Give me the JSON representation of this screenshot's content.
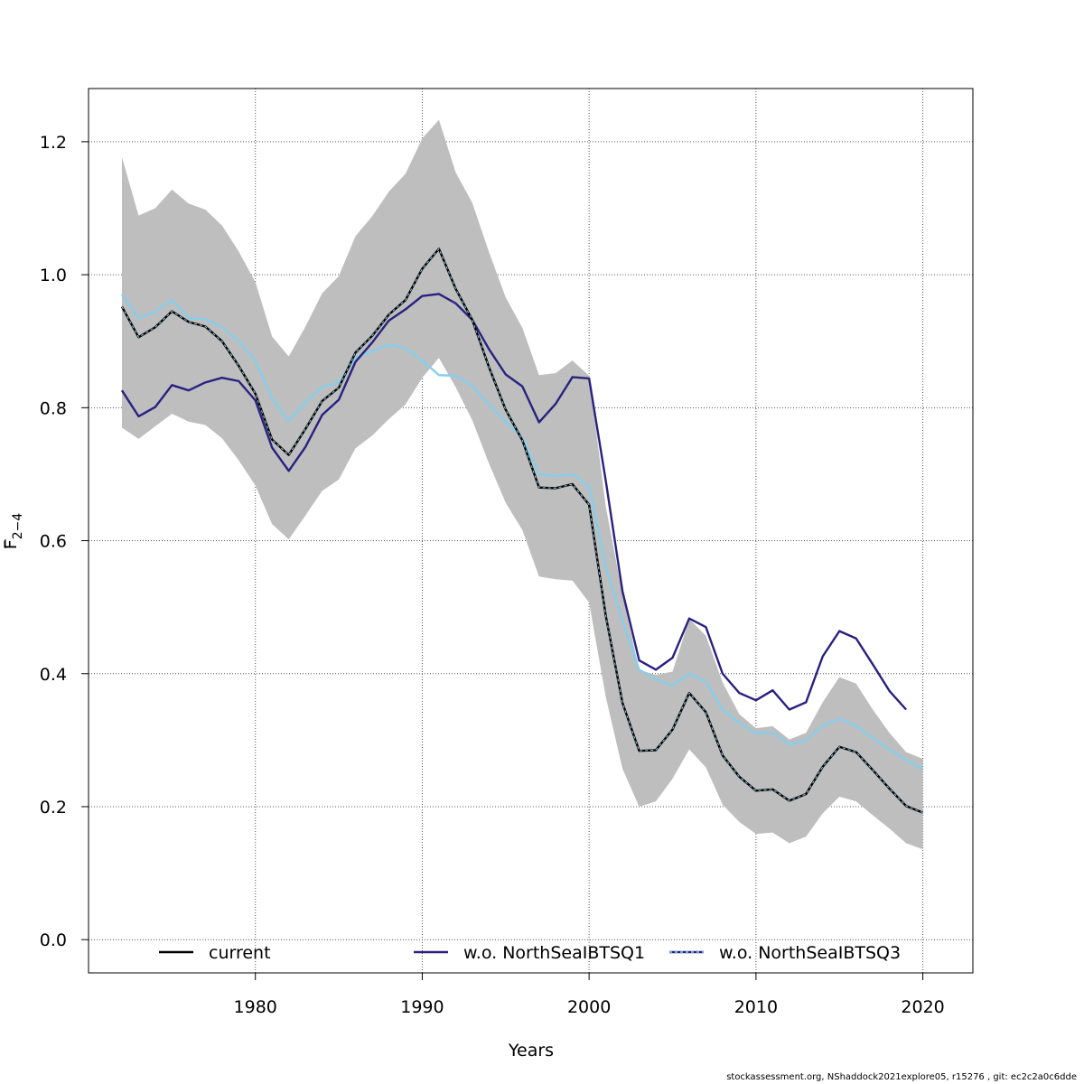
{
  "footer": "stockassessment.org, NShaddock2021explore05, r15276 , git: ec2c2a0c6dde",
  "chart_data": {
    "type": "line",
    "xlabel": "Years",
    "ylabel_main": "F",
    "ylabel_sub": "2−4",
    "xlim": [
      1970,
      2023
    ],
    "ylim": [
      -0.05,
      1.28
    ],
    "xticks": [
      1980,
      1990,
      2000,
      2010,
      2020
    ],
    "yticks": [
      0.0,
      0.2,
      0.4,
      0.6,
      0.8,
      1.0,
      1.2
    ],
    "xtick_labels": [
      "1980",
      "1990",
      "2000",
      "2010",
      "2020"
    ],
    "ytick_labels": [
      "0.0",
      "0.2",
      "0.4",
      "0.6",
      "0.8",
      "1.0",
      "1.2"
    ],
    "grid": true,
    "legend_position": "bottom",
    "x": [
      1972,
      1973,
      1974,
      1975,
      1976,
      1977,
      1978,
      1979,
      1980,
      1981,
      1982,
      1983,
      1984,
      1985,
      1986,
      1987,
      1988,
      1989,
      1990,
      1991,
      1992,
      1993,
      1994,
      1995,
      1996,
      1997,
      1998,
      1999,
      2000,
      2001,
      2002,
      2003,
      2004,
      2005,
      2006,
      2007,
      2008,
      2009,
      2010,
      2011,
      2012,
      2013,
      2014,
      2015,
      2016,
      2017,
      2018,
      2019,
      2020
    ],
    "band": {
      "color": "#bebebe",
      "lower": [
        0.77,
        0.753,
        0.772,
        0.791,
        0.779,
        0.774,
        0.754,
        0.721,
        0.683,
        0.625,
        0.602,
        0.638,
        0.675,
        0.692,
        0.739,
        0.758,
        0.783,
        0.805,
        0.845,
        0.875,
        0.831,
        0.781,
        0.716,
        0.657,
        0.616,
        0.546,
        0.542,
        0.54,
        0.507,
        0.365,
        0.257,
        0.2,
        0.208,
        0.242,
        0.286,
        0.259,
        0.203,
        0.177,
        0.159,
        0.161,
        0.145,
        0.155,
        0.19,
        0.215,
        0.208,
        0.187,
        0.167,
        0.145,
        0.136
      ],
      "upper": [
        1.177,
        1.089,
        1.1,
        1.128,
        1.107,
        1.098,
        1.074,
        1.035,
        0.989,
        0.907,
        0.877,
        0.922,
        0.972,
        0.998,
        1.058,
        1.088,
        1.125,
        1.152,
        1.205,
        1.233,
        1.154,
        1.108,
        1.034,
        0.966,
        0.92,
        0.849,
        0.852,
        0.871,
        0.848,
        0.651,
        0.519,
        0.406,
        0.398,
        0.403,
        0.482,
        0.457,
        0.387,
        0.339,
        0.318,
        0.321,
        0.301,
        0.311,
        0.357,
        0.395,
        0.385,
        0.346,
        0.311,
        0.282,
        0.272
      ]
    },
    "series": [
      {
        "name": "current",
        "color": "#000000",
        "dashed": false,
        "values": [
          0.952,
          0.906,
          0.921,
          0.945,
          0.929,
          0.922,
          0.9,
          0.863,
          0.821,
          0.752,
          0.729,
          0.768,
          0.81,
          0.83,
          0.883,
          0.908,
          0.94,
          0.962,
          1.009,
          1.039,
          0.979,
          0.932,
          0.861,
          0.797,
          0.751,
          0.68,
          0.679,
          0.685,
          0.654,
          0.487,
          0.356,
          0.284,
          0.285,
          0.316,
          0.371,
          0.342,
          0.277,
          0.245,
          0.224,
          0.226,
          0.209,
          0.219,
          0.26,
          0.29,
          0.282,
          0.255,
          0.227,
          0.201,
          0.191
        ]
      },
      {
        "name": "w.o. NorthSeaIBTSQ1",
        "color": "#2a2080",
        "dashed": false,
        "values": [
          0.826,
          0.787,
          0.801,
          0.834,
          0.826,
          0.838,
          0.845,
          0.84,
          0.811,
          0.74,
          0.705,
          0.741,
          0.789,
          0.812,
          0.869,
          0.898,
          0.931,
          0.948,
          0.968,
          0.971,
          0.957,
          0.932,
          0.888,
          0.85,
          0.832,
          0.778,
          0.806,
          0.846,
          0.844,
          0.69,
          0.524,
          0.42,
          0.406,
          0.424,
          0.483,
          0.47,
          0.4,
          0.371,
          0.36,
          0.375,
          0.346,
          0.357,
          0.426,
          0.464,
          0.453,
          0.414,
          0.374,
          0.346,
          null
        ]
      },
      {
        "name": "w.o. NorthSeaIBTSQ3",
        "color": "#87ceeb",
        "dashed": true,
        "values": [
          0.97,
          0.935,
          0.944,
          0.962,
          0.935,
          0.933,
          0.921,
          0.9,
          0.871,
          0.814,
          0.78,
          0.808,
          0.831,
          0.838,
          0.875,
          0.885,
          0.895,
          0.889,
          0.871,
          0.849,
          0.848,
          0.833,
          0.805,
          0.779,
          0.755,
          0.7,
          0.697,
          0.7,
          0.682,
          0.56,
          0.48,
          0.406,
          0.391,
          0.382,
          0.4,
          0.388,
          0.346,
          0.326,
          0.31,
          0.312,
          0.293,
          0.3,
          0.322,
          0.332,
          0.322,
          0.303,
          0.286,
          0.27,
          0.257
        ]
      }
    ]
  }
}
